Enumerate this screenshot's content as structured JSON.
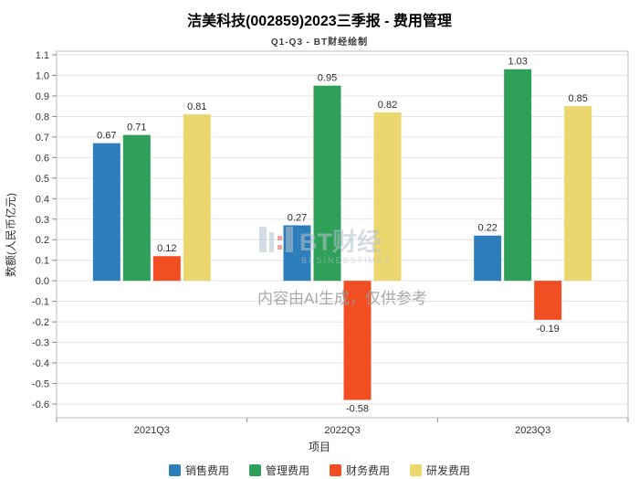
{
  "chart_data": {
    "type": "bar",
    "title": "洁美科技(002859)2023三季报 - 费用管理",
    "subtitle": "Q1-Q3 - BT财经绘制",
    "xlabel": "项目",
    "ylabel": "数额(人民币亿元)",
    "ylim": [
      -0.6,
      1.1
    ],
    "ytick_step": 0.1,
    "grid": true,
    "legend_position": "bottom",
    "categories": [
      "2021Q3",
      "2022Q3",
      "2023Q3"
    ],
    "series": [
      {
        "name": "销售费用",
        "color": "#2E7EBB",
        "values": [
          0.67,
          0.27,
          0.22
        ]
      },
      {
        "name": "管理费用",
        "color": "#2FA05A",
        "values": [
          0.71,
          0.95,
          1.03
        ]
      },
      {
        "name": "财务费用",
        "color": "#F14E23",
        "values": [
          0.12,
          -0.58,
          -0.19
        ]
      },
      {
        "name": "研发费用",
        "color": "#EBD76E",
        "values": [
          0.81,
          0.82,
          0.85
        ]
      }
    ]
  },
  "watermark": {
    "brand": "BT财经",
    "brand_sub": "BUSINESSTIMES",
    "ai_note": "内容由AI生成，仅供参考"
  }
}
